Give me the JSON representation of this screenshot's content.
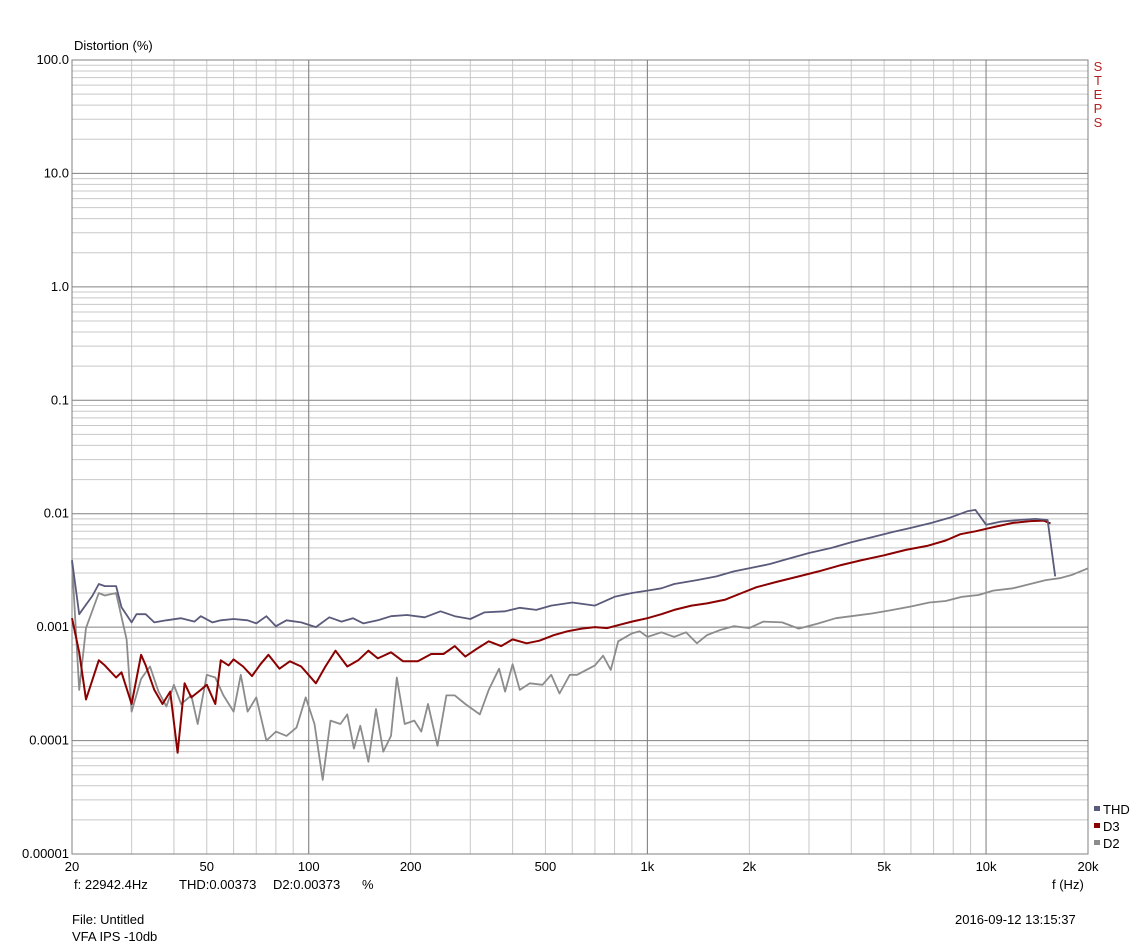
{
  "chart_data": {
    "type": "line",
    "ylabel": "Distortion (%)",
    "xlabel": "f (Hz)",
    "x_scale": "log",
    "y_scale": "log",
    "xlim": [
      20,
      20000
    ],
    "ylim": [
      1e-05,
      100
    ],
    "y_ticks": [
      {
        "v": 100,
        "label": "100.0"
      },
      {
        "v": 10,
        "label": "10.0"
      },
      {
        "v": 1,
        "label": "1.0"
      },
      {
        "v": 0.1,
        "label": "0.1"
      },
      {
        "v": 0.01,
        "label": "0.01"
      },
      {
        "v": 0.001,
        "label": "0.001"
      },
      {
        "v": 0.0001,
        "label": "0.0001"
      },
      {
        "v": 1e-05,
        "label": "0.00001"
      }
    ],
    "x_ticks": [
      {
        "v": 20,
        "label": "20"
      },
      {
        "v": 50,
        "label": "50"
      },
      {
        "v": 100,
        "label": "100"
      },
      {
        "v": 200,
        "label": "200"
      },
      {
        "v": 500,
        "label": "500"
      },
      {
        "v": 1000,
        "label": "1k"
      },
      {
        "v": 2000,
        "label": "2k"
      },
      {
        "v": 5000,
        "label": "5k"
      },
      {
        "v": 10000,
        "label": "10k"
      },
      {
        "v": 20000,
        "label": "20k"
      }
    ],
    "grid": true,
    "legend_position": "bottom-right",
    "series": [
      {
        "name": "THD",
        "color": "#5a5a7a",
        "points": [
          [
            20,
            0.0039
          ],
          [
            21,
            0.0013
          ],
          [
            23,
            0.0019
          ],
          [
            24,
            0.0024
          ],
          [
            25,
            0.0023
          ],
          [
            27,
            0.0023
          ],
          [
            28,
            0.0015
          ],
          [
            30,
            0.0011
          ],
          [
            31,
            0.0013
          ],
          [
            33,
            0.0013
          ],
          [
            35,
            0.0011
          ],
          [
            38,
            0.00115
          ],
          [
            42,
            0.0012
          ],
          [
            46,
            0.00112
          ],
          [
            48,
            0.00125
          ],
          [
            52,
            0.0011
          ],
          [
            55,
            0.00115
          ],
          [
            60,
            0.00118
          ],
          [
            66,
            0.00115
          ],
          [
            70,
            0.00108
          ],
          [
            75,
            0.00125
          ],
          [
            80,
            0.00102
          ],
          [
            86,
            0.00115
          ],
          [
            95,
            0.0011
          ],
          [
            105,
            0.001
          ],
          [
            115,
            0.00122
          ],
          [
            125,
            0.00112
          ],
          [
            135,
            0.0012
          ],
          [
            145,
            0.00108
          ],
          [
            160,
            0.00115
          ],
          [
            175,
            0.00125
          ],
          [
            195,
            0.00128
          ],
          [
            220,
            0.00122
          ],
          [
            245,
            0.00138
          ],
          [
            270,
            0.00125
          ],
          [
            300,
            0.00118
          ],
          [
            330,
            0.00135
          ],
          [
            380,
            0.00138
          ],
          [
            420,
            0.00148
          ],
          [
            470,
            0.00142
          ],
          [
            520,
            0.00155
          ],
          [
            600,
            0.00165
          ],
          [
            700,
            0.00155
          ],
          [
            800,
            0.00185
          ],
          [
            900,
            0.002
          ],
          [
            1000,
            0.0021
          ],
          [
            1100,
            0.0022
          ],
          [
            1200,
            0.0024
          ],
          [
            1400,
            0.0026
          ],
          [
            1600,
            0.0028
          ],
          [
            1800,
            0.0031
          ],
          [
            2000,
            0.0033
          ],
          [
            2300,
            0.0036
          ],
          [
            2600,
            0.004
          ],
          [
            3000,
            0.0045
          ],
          [
            3500,
            0.005
          ],
          [
            4000,
            0.0056
          ],
          [
            4600,
            0.0062
          ],
          [
            5300,
            0.0069
          ],
          [
            6000,
            0.0075
          ],
          [
            6900,
            0.0083
          ],
          [
            7800,
            0.0092
          ],
          [
            8800,
            0.0105
          ],
          [
            9300,
            0.0108
          ],
          [
            10000,
            0.008
          ],
          [
            11000,
            0.0085
          ],
          [
            12500,
            0.0088
          ],
          [
            14000,
            0.009
          ],
          [
            15200,
            0.0088
          ],
          [
            16000,
            0.0028
          ]
        ]
      },
      {
        "name": "D3",
        "color": "#8b0000",
        "points": [
          [
            20,
            0.0012
          ],
          [
            21,
            0.0006
          ],
          [
            22,
            0.00023
          ],
          [
            24,
            0.00051
          ],
          [
            25,
            0.00046
          ],
          [
            27,
            0.00036
          ],
          [
            28,
            0.0004
          ],
          [
            30,
            0.00021
          ],
          [
            32,
            0.00057
          ],
          [
            33,
            0.00046
          ],
          [
            35,
            0.00028
          ],
          [
            37,
            0.00021
          ],
          [
            39,
            0.00027
          ],
          [
            41,
            7.8e-05
          ],
          [
            43,
            0.00032
          ],
          [
            45,
            0.00024
          ],
          [
            48,
            0.00028
          ],
          [
            50,
            0.00031
          ],
          [
            53,
            0.00021
          ],
          [
            55,
            0.00051
          ],
          [
            58,
            0.00046
          ],
          [
            60,
            0.00052
          ],
          [
            64,
            0.00045
          ],
          [
            68,
            0.00037
          ],
          [
            72,
            0.00047
          ],
          [
            76,
            0.00057
          ],
          [
            82,
            0.00043
          ],
          [
            88,
            0.0005
          ],
          [
            95,
            0.00045
          ],
          [
            105,
            0.00032
          ],
          [
            112,
            0.00045
          ],
          [
            120,
            0.00062
          ],
          [
            130,
            0.00045
          ],
          [
            140,
            0.00051
          ],
          [
            150,
            0.00062
          ],
          [
            160,
            0.00053
          ],
          [
            175,
            0.0006
          ],
          [
            190,
            0.0005
          ],
          [
            210,
            0.0005
          ],
          [
            230,
            0.00058
          ],
          [
            250,
            0.00058
          ],
          [
            270,
            0.00068
          ],
          [
            290,
            0.00055
          ],
          [
            310,
            0.00063
          ],
          [
            340,
            0.00075
          ],
          [
            370,
            0.00068
          ],
          [
            400,
            0.00078
          ],
          [
            440,
            0.00072
          ],
          [
            480,
            0.00076
          ],
          [
            530,
            0.00085
          ],
          [
            580,
            0.00092
          ],
          [
            640,
            0.00097
          ],
          [
            700,
            0.001
          ],
          [
            760,
            0.00098
          ],
          [
            830,
            0.00105
          ],
          [
            900,
            0.00112
          ],
          [
            1000,
            0.0012
          ],
          [
            1100,
            0.0013
          ],
          [
            1200,
            0.00142
          ],
          [
            1350,
            0.00155
          ],
          [
            1500,
            0.00162
          ],
          [
            1700,
            0.00175
          ],
          [
            1900,
            0.002
          ],
          [
            2100,
            0.00225
          ],
          [
            2400,
            0.0025
          ],
          [
            2800,
            0.0028
          ],
          [
            3200,
            0.0031
          ],
          [
            3700,
            0.0035
          ],
          [
            4300,
            0.0039
          ],
          [
            5000,
            0.0043
          ],
          [
            5800,
            0.0048
          ],
          [
            6700,
            0.0052
          ],
          [
            7600,
            0.0058
          ],
          [
            8400,
            0.0066
          ],
          [
            9300,
            0.007
          ],
          [
            10500,
            0.0076
          ],
          [
            12000,
            0.0083
          ],
          [
            13500,
            0.0086
          ],
          [
            14800,
            0.0087
          ],
          [
            15500,
            0.0082
          ]
        ]
      },
      {
        "name": "D2",
        "color": "#8c8c8c",
        "points": [
          [
            20,
            0.0038
          ],
          [
            21,
            0.00028
          ],
          [
            22,
            0.00098
          ],
          [
            24,
            0.002
          ],
          [
            25,
            0.0019
          ],
          [
            27,
            0.002
          ],
          [
            29,
            0.00078
          ],
          [
            30,
            0.00018
          ],
          [
            32,
            0.00035
          ],
          [
            34,
            0.00045
          ],
          [
            36,
            0.00027
          ],
          [
            38,
            0.0002
          ],
          [
            40,
            0.00031
          ],
          [
            42,
            0.00021
          ],
          [
            45,
            0.00025
          ],
          [
            47,
            0.00014
          ],
          [
            50,
            0.00038
          ],
          [
            53,
            0.00036
          ],
          [
            56,
            0.00025
          ],
          [
            60,
            0.00018
          ],
          [
            63,
            0.00038
          ],
          [
            66,
            0.00018
          ],
          [
            70,
            0.00024
          ],
          [
            75,
            0.0001
          ],
          [
            80,
            0.00012
          ],
          [
            86,
            0.00011
          ],
          [
            92,
            0.00013
          ],
          [
            98,
            0.00024
          ],
          [
            104,
            0.00014
          ],
          [
            110,
            4.5e-05
          ],
          [
            116,
            0.00015
          ],
          [
            124,
            0.00014
          ],
          [
            130,
            0.00017
          ],
          [
            136,
            8.5e-05
          ],
          [
            142,
            0.000135
          ],
          [
            150,
            6.5e-05
          ],
          [
            158,
            0.00019
          ],
          [
            166,
            8e-05
          ],
          [
            175,
            0.00011
          ],
          [
            182,
            0.00036
          ],
          [
            192,
            0.00014
          ],
          [
            205,
            0.00015
          ],
          [
            215,
            0.00012
          ],
          [
            225,
            0.00021
          ],
          [
            240,
            9e-05
          ],
          [
            255,
            0.00025
          ],
          [
            270,
            0.00025
          ],
          [
            290,
            0.00021
          ],
          [
            320,
            0.00017
          ],
          [
            340,
            0.00028
          ],
          [
            365,
            0.00043
          ],
          [
            380,
            0.00027
          ],
          [
            400,
            0.00047
          ],
          [
            420,
            0.00028
          ],
          [
            450,
            0.00032
          ],
          [
            490,
            0.00031
          ],
          [
            520,
            0.00038
          ],
          [
            550,
            0.00026
          ],
          [
            590,
            0.00038
          ],
          [
            620,
            0.00038
          ],
          [
            660,
            0.00042
          ],
          [
            700,
            0.00046
          ],
          [
            740,
            0.00056
          ],
          [
            780,
            0.00042
          ],
          [
            820,
            0.00075
          ],
          [
            900,
            0.00088
          ],
          [
            950,
            0.00092
          ],
          [
            1000,
            0.00082
          ],
          [
            1100,
            0.0009
          ],
          [
            1200,
            0.00082
          ],
          [
            1300,
            0.0009
          ],
          [
            1400,
            0.00072
          ],
          [
            1500,
            0.00085
          ],
          [
            1650,
            0.00095
          ],
          [
            1800,
            0.00102
          ],
          [
            2000,
            0.00098
          ],
          [
            2200,
            0.00112
          ],
          [
            2500,
            0.0011
          ],
          [
            2800,
            0.00097
          ],
          [
            3200,
            0.00108
          ],
          [
            3600,
            0.0012
          ],
          [
            4000,
            0.00125
          ],
          [
            4600,
            0.00132
          ],
          [
            5300,
            0.00142
          ],
          [
            6000,
            0.00152
          ],
          [
            6800,
            0.00165
          ],
          [
            7600,
            0.0017
          ],
          [
            8500,
            0.00185
          ],
          [
            9500,
            0.00192
          ],
          [
            10500,
            0.0021
          ],
          [
            12000,
            0.0022
          ],
          [
            13500,
            0.0024
          ],
          [
            15000,
            0.0026
          ],
          [
            16500,
            0.0027
          ],
          [
            18000,
            0.0029
          ],
          [
            20000,
            0.0033
          ]
        ]
      }
    ]
  },
  "steps_text": [
    "S",
    "T",
    "E",
    "P",
    "S"
  ],
  "readout": {
    "freq": "f: 22942.4Hz",
    "thd": "THD:0.00373",
    "d2": "D2:0.00373",
    "unit": "%"
  },
  "file": "File: Untitled",
  "description": "VFA IPS -10db",
  "timestamp": "2016-09-12 13:15:37"
}
